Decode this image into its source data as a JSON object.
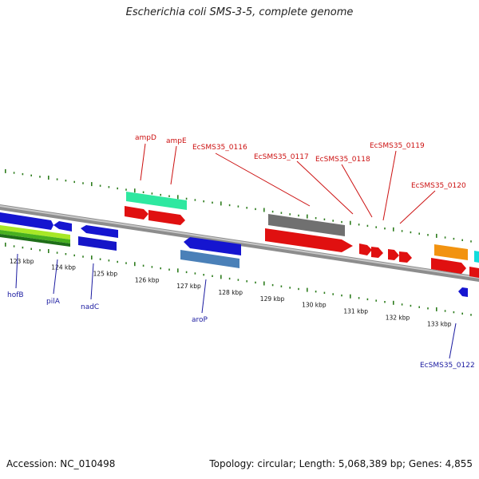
{
  "title": "Escherichia coli SMS-3-5, complete genome",
  "footer": {
    "accession": "Accession: NC_010498",
    "summary": "Topology: circular; Length: 5,068,389 bp; Genes: 4,855"
  },
  "colors": {
    "backbone": "#8a8a8a",
    "dots": "#2e7d1e",
    "label_red": "#cc1111",
    "label_blue": "#1a1aa0"
  },
  "ticks": [
    {
      "kbp": 123,
      "label": "123 kbp"
    },
    {
      "kbp": 124,
      "label": "124 kbp"
    },
    {
      "kbp": 125,
      "label": "125 kbp"
    },
    {
      "kbp": 126,
      "label": "126 kbp"
    },
    {
      "kbp": 127,
      "label": "127 kbp"
    },
    {
      "kbp": 128,
      "label": "128 kbp"
    },
    {
      "kbp": 129,
      "label": "129 kbp"
    },
    {
      "kbp": 130,
      "label": "130 kbp"
    },
    {
      "kbp": 131,
      "label": "131 kbp"
    },
    {
      "kbp": 132,
      "label": "132 kbp"
    },
    {
      "kbp": 133,
      "label": "133 kbp"
    }
  ],
  "top_labels": [
    {
      "text": "ampD"
    },
    {
      "text": "ampE"
    },
    {
      "text": "EcSMS35_0116"
    },
    {
      "text": "EcSMS35_0117"
    },
    {
      "text": "EcSMS35_0118"
    },
    {
      "text": "EcSMS35_0119"
    },
    {
      "text": "EcSMS35_0120"
    }
  ],
  "bottom_labels": [
    {
      "text": "hofB"
    },
    {
      "text": "pilA"
    },
    {
      "text": "nadC"
    },
    {
      "text": "aroP"
    },
    {
      "text": "EcSMS35_0122"
    }
  ]
}
